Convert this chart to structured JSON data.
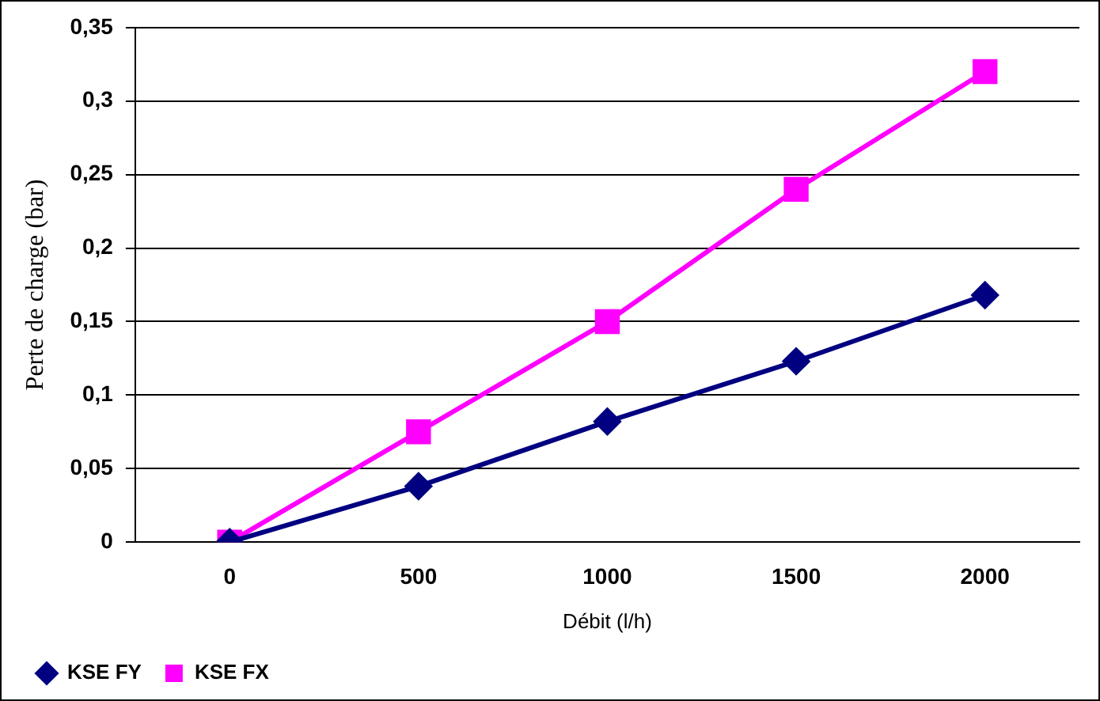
{
  "chart_data": {
    "type": "line",
    "xlabel": "Débit (l/h)",
    "ylabel": "Perte de charge (bar)",
    "categories": [
      "0",
      "500",
      "1000",
      "1500",
      "2000"
    ],
    "series": [
      {
        "name": "KSE FY",
        "color": "#000080",
        "marker": "diamond",
        "values": [
          0,
          0.038,
          0.082,
          0.123,
          0.168
        ]
      },
      {
        "name": "KSE FX",
        "color": "#ff00ff",
        "marker": "square",
        "values": [
          0,
          0.075,
          0.15,
          0.24,
          0.32
        ]
      }
    ],
    "ylim": [
      0,
      0.35
    ],
    "yticks": [
      {
        "value": 0,
        "label": "0"
      },
      {
        "value": 0.05,
        "label": "0,05"
      },
      {
        "value": 0.1,
        "label": "0,1"
      },
      {
        "value": 0.15,
        "label": "0,15"
      },
      {
        "value": 0.2,
        "label": "0,2"
      },
      {
        "value": 0.25,
        "label": "0,25"
      },
      {
        "value": 0.3,
        "label": "0,3"
      },
      {
        "value": 0.35,
        "label": "0,35"
      }
    ],
    "grid": "y",
    "legend": "bottom left",
    "line_style": "solid"
  }
}
